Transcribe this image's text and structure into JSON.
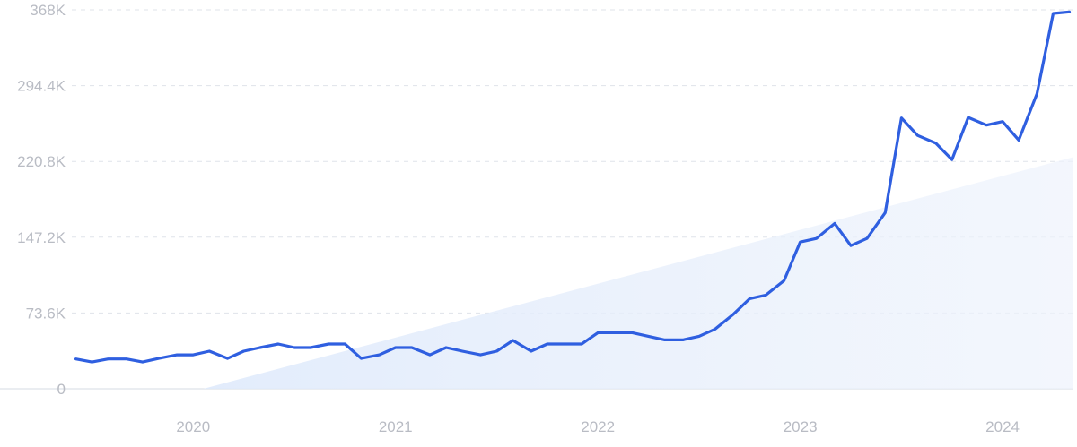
{
  "chart_data": {
    "type": "line",
    "title": "",
    "xlabel": "",
    "ylabel": "",
    "ylim": [
      0,
      368000
    ],
    "xlim": [
      2019.4,
      2024.35
    ],
    "grid": true,
    "y_ticks": [
      {
        "value": 0,
        "label": "0"
      },
      {
        "value": 73600,
        "label": "73.6K"
      },
      {
        "value": 147200,
        "label": "147.2K"
      },
      {
        "value": 220800,
        "label": "220.8K"
      },
      {
        "value": 294400,
        "label": "294.4K"
      },
      {
        "value": 368000,
        "label": "368K"
      }
    ],
    "x_ticks": [
      {
        "value": 2020,
        "label": "2020"
      },
      {
        "value": 2021,
        "label": "2021"
      },
      {
        "value": 2022,
        "label": "2022"
      },
      {
        "value": 2023,
        "label": "2023"
      },
      {
        "value": 2024,
        "label": "2024"
      }
    ],
    "trend": {
      "x": [
        2020.05,
        2024.35
      ],
      "y": [
        0,
        225000
      ]
    },
    "series": [
      {
        "color": "#2f5fe0",
        "x": [
          2019.42,
          2019.5,
          2019.58,
          2019.67,
          2019.75,
          2019.83,
          2019.92,
          2020.0,
          2020.08,
          2020.17,
          2020.25,
          2020.33,
          2020.42,
          2020.5,
          2020.58,
          2020.67,
          2020.75,
          2020.83,
          2020.92,
          2021.0,
          2021.08,
          2021.17,
          2021.25,
          2021.33,
          2021.42,
          2021.5,
          2021.58,
          2021.67,
          2021.75,
          2021.83,
          2021.92,
          2022.0,
          2022.08,
          2022.17,
          2022.25,
          2022.33,
          2022.42,
          2022.5,
          2022.58,
          2022.67,
          2022.75,
          2022.83,
          2022.92,
          2023.0,
          2023.08,
          2023.17,
          2023.25,
          2023.33,
          2023.42,
          2023.5,
          2023.58,
          2023.67,
          2023.75,
          2023.83,
          2023.92,
          2024.0,
          2024.08,
          2024.17,
          2024.25,
          2024.33
        ],
        "y": [
          29000,
          26000,
          29000,
          29000,
          26000,
          29500,
          33000,
          33000,
          36500,
          29500,
          36500,
          40000,
          43500,
          40000,
          40000,
          43500,
          43500,
          29500,
          33000,
          40000,
          40000,
          33000,
          40000,
          36500,
          33000,
          36500,
          47000,
          36500,
          43500,
          43500,
          43500,
          54500,
          54500,
          54500,
          51000,
          47500,
          47500,
          51000,
          58000,
          72500,
          87500,
          91000,
          105000,
          142500,
          146000,
          160500,
          139000,
          146000,
          171000,
          263000,
          246000,
          238500,
          222500,
          263500,
          256000,
          259500,
          241500,
          286500,
          364500,
          366000
        ]
      }
    ]
  }
}
